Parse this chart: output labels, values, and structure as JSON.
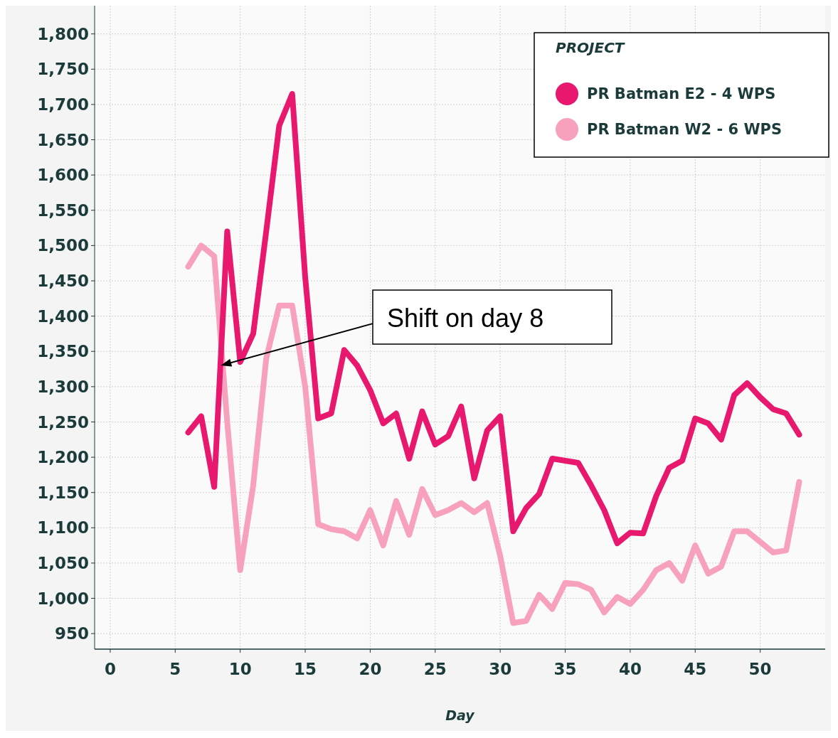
{
  "chart_data": {
    "type": "line",
    "xlabel": "Day",
    "legend_title": "PROJECT",
    "legend": "top right",
    "grid": true,
    "line_style": "solid",
    "marker": "none",
    "x": [
      6,
      7,
      8,
      9,
      10,
      11,
      12,
      13,
      14,
      15,
      16,
      17,
      18,
      19,
      20,
      21,
      22,
      23,
      24,
      25,
      26,
      27,
      28,
      29,
      30,
      31,
      32,
      33,
      34,
      35,
      36,
      37,
      38,
      39,
      40,
      41,
      42,
      43,
      44,
      45,
      46,
      47,
      48,
      49,
      50,
      51,
      52,
      53
    ],
    "xlim": [
      -1.2,
      55
    ],
    "xticks": [
      0,
      5,
      10,
      15,
      20,
      25,
      30,
      35,
      40,
      45,
      50
    ],
    "ylim": [
      928,
      1840
    ],
    "yticks": [
      950,
      {
        "value": 1000,
        "label": "1,000"
      },
      {
        "value": 1050,
        "label": "1,050"
      },
      {
        "value": 1100,
        "label": "1,100"
      },
      {
        "value": 1150,
        "label": "1,150"
      },
      {
        "value": 1200,
        "label": "1,200"
      },
      {
        "value": 1250,
        "label": "1,250"
      },
      {
        "value": 1300,
        "label": "1,300"
      },
      {
        "value": 1350,
        "label": "1,350"
      },
      {
        "value": 1400,
        "label": "1,400"
      },
      {
        "value": 1450,
        "label": "1,450"
      },
      {
        "value": 1500,
        "label": "1,500"
      },
      {
        "value": 1550,
        "label": "1,550"
      },
      {
        "value": 1600,
        "label": "1,600"
      },
      {
        "value": 1650,
        "label": "1,650"
      },
      {
        "value": 1700,
        "label": "1,700"
      },
      {
        "value": 1750,
        "label": "1,750"
      },
      {
        "value": 1800,
        "label": "1,800"
      }
    ],
    "annotations": [
      {
        "text": "Shift on day 8",
        "x": 8.5,
        "y": 1330
      }
    ],
    "series": [
      {
        "name": "PR Batman E2 - 4 WPS",
        "color": "#e8186e",
        "values": [
          1235,
          1258,
          1158,
          1520,
          1335,
          1375,
          1520,
          1670,
          1715,
          1455,
          1255,
          1262,
          1352,
          1330,
          1295,
          1248,
          1262,
          1198,
          1265,
          1218,
          1230,
          1272,
          1170,
          1238,
          1258,
          1095,
          1128,
          1148,
          1198,
          1195,
          1192,
          1160,
          1125,
          1078,
          1093,
          1092,
          1145,
          1185,
          1195,
          1255,
          1248,
          1225,
          1288,
          1305,
          1285,
          1268,
          1262,
          1232
        ]
      },
      {
        "name": "PR Batman W2 - 6 WPS",
        "color": "#f7a1bc",
        "values": [
          1470,
          1500,
          1485,
          1250,
          1040,
          1160,
          1340,
          1415,
          1415,
          1300,
          1105,
          1098,
          1095,
          1085,
          1125,
          1075,
          1138,
          1090,
          1155,
          1118,
          1125,
          1135,
          1122,
          1135,
          1060,
          965,
          968,
          1005,
          985,
          1022,
          1020,
          1012,
          980,
          1002,
          992,
          1012,
          1040,
          1050,
          1025,
          1075,
          1035,
          1045,
          1095,
          1095,
          1080,
          1065,
          1068,
          1165
        ]
      }
    ]
  }
}
